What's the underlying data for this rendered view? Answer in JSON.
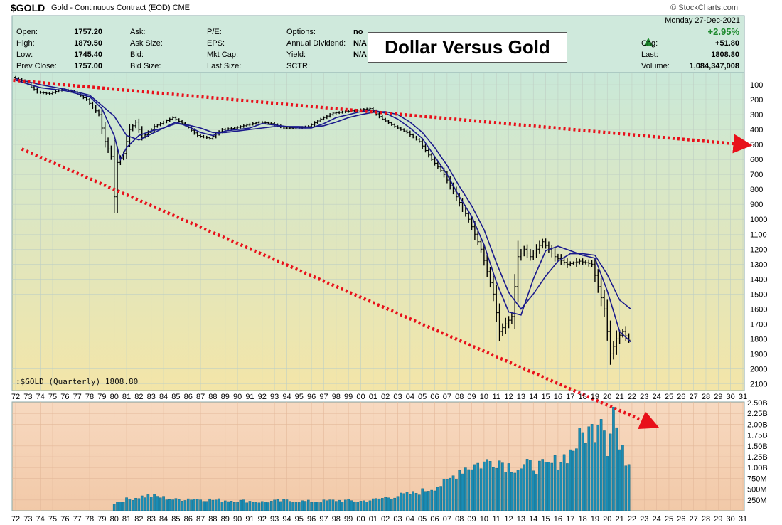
{
  "header": {
    "symbol": "$GOLD",
    "name": "Gold - Continuous Contract (EOD)",
    "exchange": "CME",
    "copyright": "© StockCharts.com",
    "date": "Monday  27-Dec-2021"
  },
  "stats": {
    "open_label": "Open:",
    "open": "1757.20",
    "high_label": "High:",
    "high": "1879.50",
    "low_label": "Low:",
    "low": "1745.40",
    "prev_label": "Prev Close:",
    "prev": "1757.00",
    "ask_label": "Ask:",
    "ask_size_label": "Ask Size:",
    "bid_label": "Bid:",
    "bid_size_label": "Bid Size:",
    "pe_label": "P/E:",
    "eps_label": "EPS:",
    "mktcap_label": "Mkt Cap:",
    "lastsize_label": "Last Size:",
    "options_label": "Options:",
    "options": "no",
    "div_label": "Annual Dividend:",
    "div": "N/A",
    "yield_label": "Yield:",
    "yield": "N/A",
    "sctr_label": "SCTR:",
    "pct_change": "+2.95%",
    "chg_label": "Chg:",
    "chg": "+51.80",
    "last_label": "Last:",
    "last": "1808.80",
    "volume_label": "Volume:",
    "volume": "1,084,347,008"
  },
  "banner": "Dollar Versus Gold",
  "quarterly_label": "$GOLD (Quarterly) 1808.80",
  "colors": {
    "price_bg_top": "#c9e8d8",
    "price_bg_bottom": "#f3e5a8",
    "volume_bg": "#f7d9c0",
    "header_bg": "#cfe9dc",
    "price_bar": "#000000",
    "moving_average": "#1a1a8c",
    "volume_bar": "#1a8cb4",
    "trend_arrow": "#e8101a",
    "up_arrow": "#1e8a2e"
  },
  "chart_data": {
    "type": "line",
    "title": "Dollar Versus Gold",
    "y_axis": {
      "reversed": true,
      "ylim": [
        0,
        2150
      ],
      "ticks": [
        "100",
        "200",
        "300",
        "400",
        "500",
        "600",
        "700",
        "800",
        "900",
        "1000",
        "1100",
        "1200",
        "1300",
        "1400",
        "1500",
        "1600",
        "1700",
        "1800",
        "1900",
        "2000",
        "2100"
      ]
    },
    "x_axis": {
      "ticks": [
        "72",
        "73",
        "74",
        "75",
        "76",
        "77",
        "78",
        "79",
        "80",
        "81",
        "82",
        "83",
        "84",
        "85",
        "86",
        "87",
        "88",
        "89",
        "90",
        "91",
        "92",
        "93",
        "94",
        "95",
        "96",
        "97",
        "98",
        "99",
        "00",
        "01",
        "02",
        "03",
        "04",
        "05",
        "06",
        "07",
        "08",
        "09",
        "10",
        "11",
        "12",
        "13",
        "14",
        "15",
        "16",
        "17",
        "18",
        "19",
        "20",
        "21",
        "22",
        "23",
        "24",
        "25",
        "26",
        "27",
        "28",
        "29",
        "30",
        "31"
      ]
    },
    "price_series": {
      "name": "$GOLD (Quarterly)",
      "x": [
        1972,
        1973,
        1974,
        1975,
        1976,
        1977,
        1978,
        1979,
        1979.5,
        1980,
        1980.25,
        1980.5,
        1981,
        1981.5,
        1982,
        1982.5,
        1983,
        1983.5,
        1984,
        1985,
        1986,
        1987,
        1988,
        1989,
        1990,
        1991,
        1992,
        1993,
        1994,
        1995,
        1996,
        1997,
        1998,
        1999,
        2000,
        2001,
        2002,
        2003,
        2004,
        2005,
        2006,
        2007,
        2008,
        2009,
        2010,
        2011,
        2011.5,
        2012,
        2012.5,
        2013,
        2013.5,
        2014,
        2015,
        2016,
        2017,
        2018,
        2019,
        2019.5,
        2020,
        2020.5,
        2021,
        2021.5,
        2021.99
      ],
      "values": [
        50,
        80,
        150,
        160,
        130,
        150,
        200,
        300,
        480,
        580,
        850,
        620,
        560,
        400,
        350,
        450,
        420,
        380,
        360,
        320,
        370,
        440,
        460,
        400,
        390,
        370,
        350,
        360,
        390,
        390,
        380,
        330,
        290,
        280,
        270,
        260,
        330,
        380,
        420,
        480,
        600,
        700,
        850,
        1000,
        1200,
        1500,
        1750,
        1700,
        1650,
        1250,
        1200,
        1250,
        1150,
        1250,
        1300,
        1280,
        1300,
        1450,
        1600,
        1900,
        1800,
        1750,
        1808.8
      ]
    },
    "ma_fast": {
      "x": [
        1972,
        1974,
        1976,
        1978,
        1979,
        1980,
        1980.5,
        1981,
        1982,
        1983,
        1984,
        1985,
        1986,
        1987,
        1988,
        1989,
        1990,
        1991,
        1992,
        1993,
        1994,
        1995,
        1996,
        1997,
        1998,
        1999,
        2000,
        2001,
        2002,
        2003,
        2004,
        2005,
        2006,
        2007,
        2008,
        2009,
        2010,
        2011,
        2012,
        2013,
        2014,
        2015,
        2016,
        2017,
        2018,
        2019,
        2020,
        2021,
        2021.9
      ],
      "values": [
        70,
        120,
        140,
        180,
        260,
        440,
        600,
        520,
        440,
        410,
        390,
        350,
        380,
        420,
        440,
        410,
        400,
        390,
        360,
        370,
        380,
        390,
        390,
        360,
        320,
        300,
        280,
        270,
        290,
        330,
        390,
        460,
        580,
        700,
        850,
        980,
        1170,
        1420,
        1620,
        1640,
        1400,
        1210,
        1180,
        1210,
        1240,
        1260,
        1480,
        1750,
        1820
      ]
    },
    "ma_slow": {
      "x": [
        1972,
        1974,
        1976,
        1978,
        1980,
        1981,
        1982,
        1983,
        1984,
        1985,
        1986,
        1987,
        1988,
        1989,
        1990,
        1991,
        1992,
        1993,
        1994,
        1995,
        1996,
        1997,
        1998,
        1999,
        2000,
        2001,
        2002,
        2003,
        2004,
        2005,
        2006,
        2007,
        2008,
        2009,
        2010,
        2011,
        2012,
        2013,
        2014,
        2015,
        2016,
        2017,
        2018,
        2019,
        2020,
        2021,
        2021.9
      ],
      "values": [
        60,
        100,
        130,
        170,
        310,
        440,
        470,
        430,
        390,
        360,
        370,
        390,
        420,
        420,
        410,
        400,
        390,
        380,
        380,
        380,
        385,
        375,
        350,
        320,
        300,
        285,
        280,
        300,
        350,
        420,
        520,
        640,
        780,
        910,
        1070,
        1290,
        1490,
        1600,
        1500,
        1380,
        1280,
        1230,
        1230,
        1240,
        1370,
        1540,
        1600
      ]
    },
    "volume_series": {
      "name": "Volume",
      "y_ticks": [
        "250M",
        "500M",
        "750M",
        "1.00B",
        "1.25B",
        "1.50B",
        "1.75B",
        "2.00B",
        "2.25B",
        "2.50B"
      ],
      "x": [
        1980,
        1981,
        1982,
        1983,
        1984,
        1985,
        1986,
        1987,
        1988,
        1989,
        1990,
        1991,
        1992,
        1993,
        1994,
        1995,
        1996,
        1997,
        1998,
        1999,
        2000,
        2001,
        2002,
        2003,
        2004,
        2005,
        2006,
        2007,
        2008,
        2009,
        2010,
        2011,
        2012,
        2013,
        2014,
        2015,
        2016,
        2017,
        2018,
        2019,
        2019.5,
        2020,
        2020.5,
        2021,
        2021.9
      ],
      "values": [
        0.18,
        0.26,
        0.32,
        0.35,
        0.3,
        0.25,
        0.28,
        0.27,
        0.25,
        0.24,
        0.23,
        0.22,
        0.2,
        0.22,
        0.23,
        0.22,
        0.21,
        0.22,
        0.24,
        0.23,
        0.22,
        0.25,
        0.3,
        0.35,
        0.38,
        0.45,
        0.55,
        0.65,
        0.95,
        1.05,
        1.1,
        1.2,
        1.05,
        1.0,
        1.05,
        1.0,
        1.15,
        1.35,
        1.75,
        1.9,
        2.45,
        1.5,
        2.4,
        1.4,
        1.08
      ]
    },
    "trend_lines": [
      {
        "from": [
          1971.8,
          70
        ],
        "to": [
          2031,
          500
        ]
      },
      {
        "from": [
          1972.5,
          530
        ],
        "to": [
          2023.5,
          2350
        ]
      }
    ]
  }
}
